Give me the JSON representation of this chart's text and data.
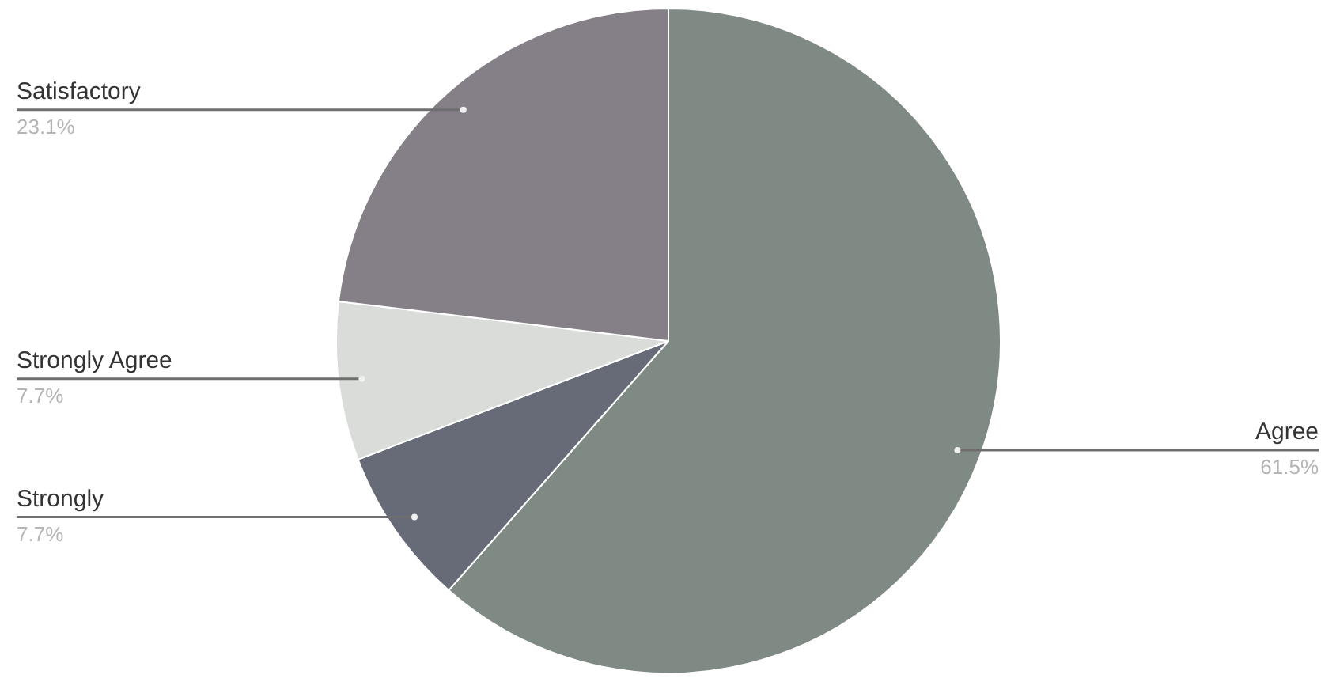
{
  "chart_data": {
    "type": "pie",
    "categories": [
      "Agree",
      "Strongly",
      "Strongly Agree",
      "Satisfactory"
    ],
    "values": [
      61.5,
      7.7,
      7.7,
      23.1
    ],
    "colors": [
      "#808a84",
      "#676b78",
      "#d9dcd8",
      "#857f87"
    ],
    "value_labels": [
      "61.5%",
      "7.7%",
      "7.7%",
      "23.1%"
    ]
  }
}
